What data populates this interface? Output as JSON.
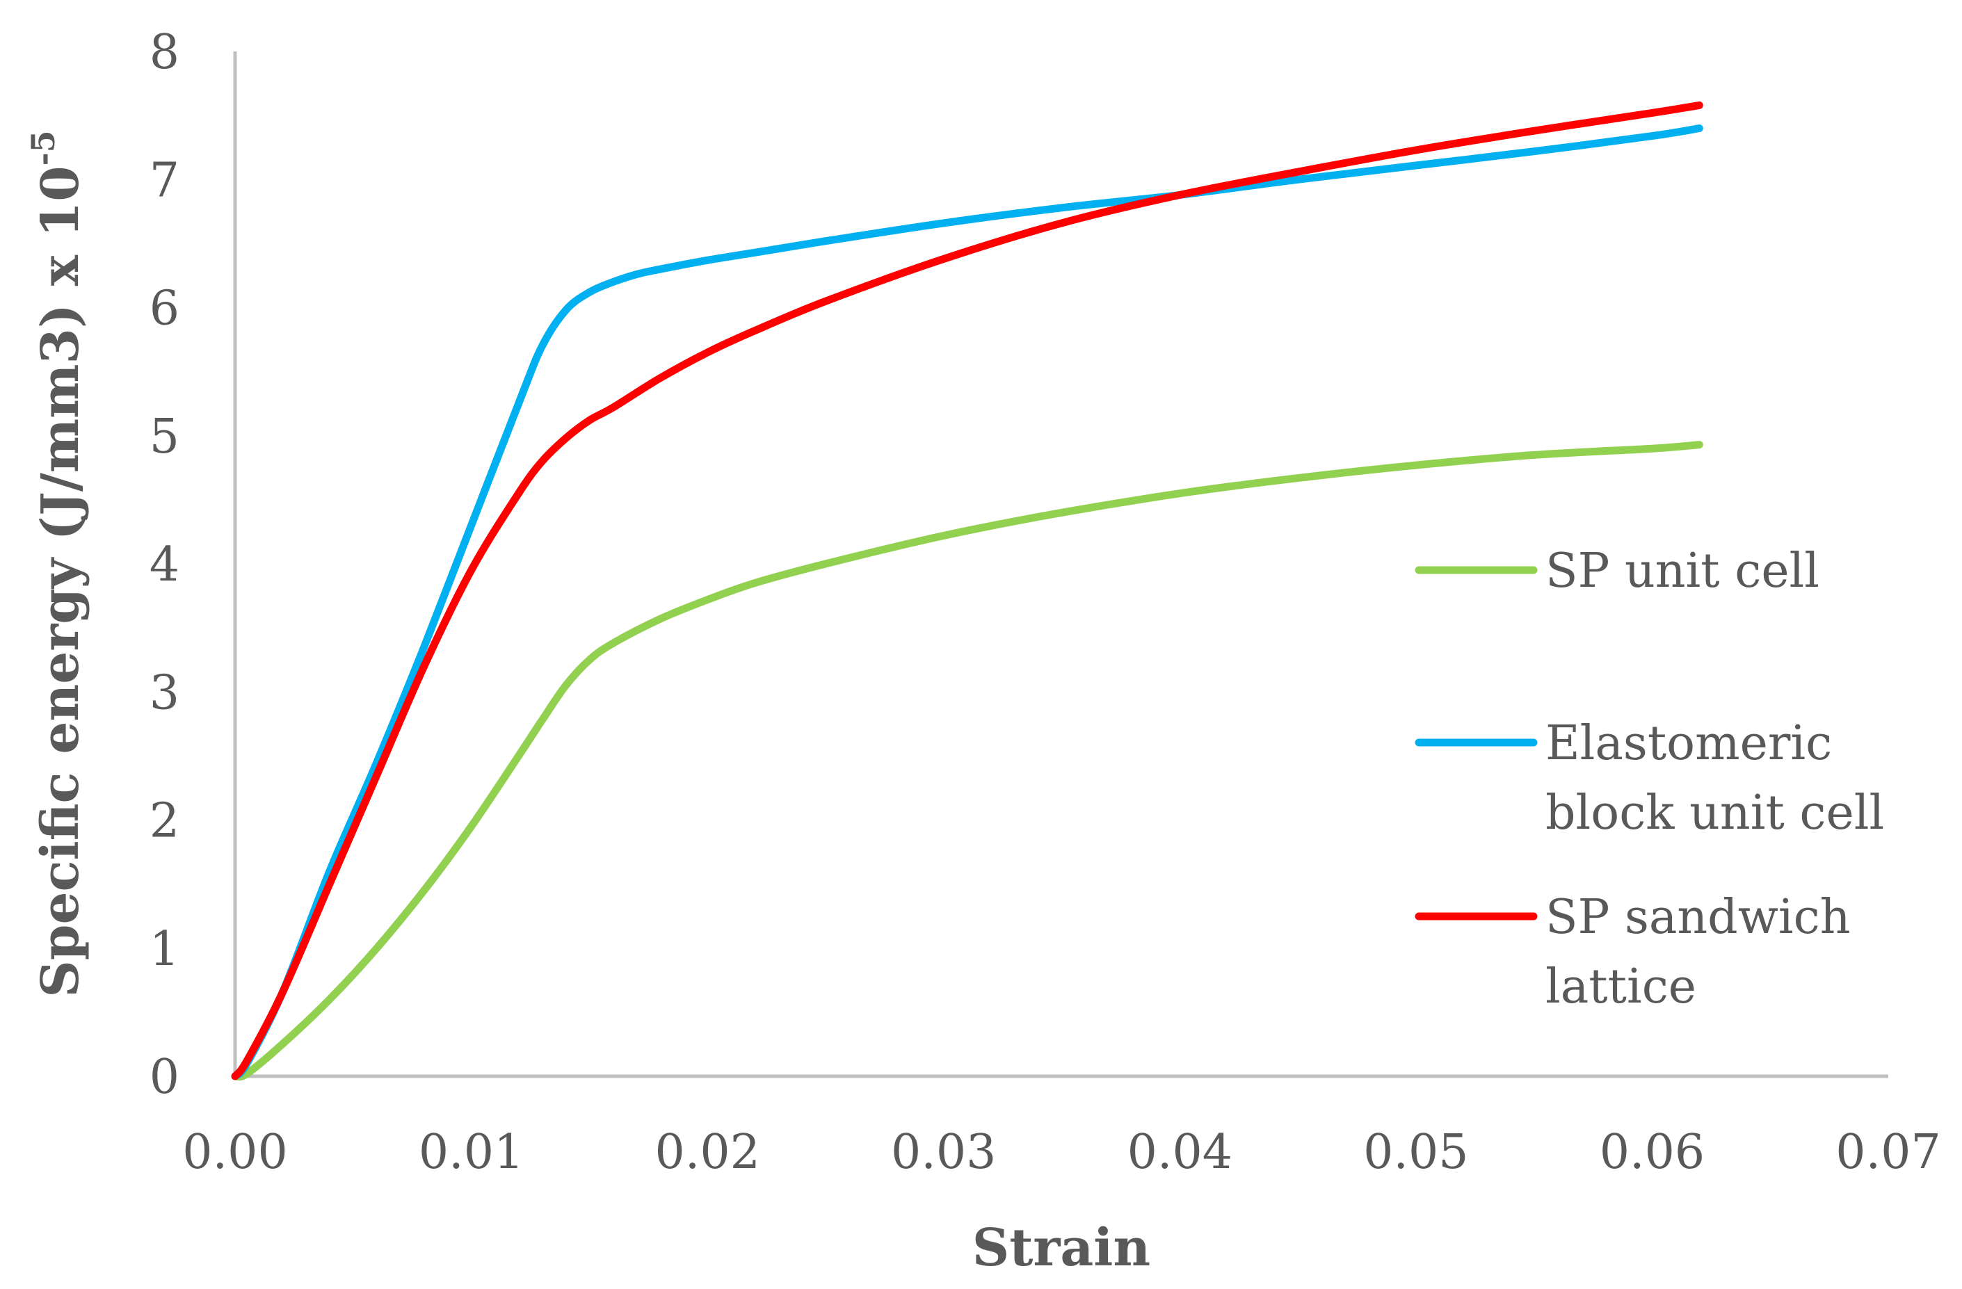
{
  "chart_data": {
    "type": "line",
    "title": "",
    "xlabel": "Strain",
    "ylabel_main": "Specific energy (J/mm3) x 10",
    "ylabel_sup": "-5",
    "xlim": [
      0,
      0.07
    ],
    "ylim": [
      0,
      8
    ],
    "xticks": [
      "0.00",
      "0.01",
      "0.02",
      "0.03",
      "0.04",
      "0.05",
      "0.06",
      "0.07"
    ],
    "yticks": [
      "0",
      "1",
      "2",
      "3",
      "4",
      "5",
      "6",
      "7",
      "8"
    ],
    "grid": false,
    "legend_position": "right",
    "series": [
      {
        "name": "SP unit cell",
        "legend_lines": [
          "SP unit cell"
        ],
        "color": "#92D050",
        "x": [
          0,
          0.0005,
          0.002,
          0.004,
          0.006,
          0.008,
          0.01,
          0.012,
          0.013,
          0.014,
          0.015,
          0.016,
          0.018,
          0.02,
          0.022,
          0.025,
          0.03,
          0.035,
          0.04,
          0.045,
          0.05,
          0.055,
          0.06,
          0.062
        ],
        "y": [
          0,
          0.02,
          0.25,
          0.6,
          1.0,
          1.45,
          1.95,
          2.5,
          2.78,
          3.05,
          3.25,
          3.38,
          3.57,
          3.72,
          3.85,
          4.0,
          4.22,
          4.4,
          4.55,
          4.67,
          4.77,
          4.85,
          4.9,
          4.93
        ]
      },
      {
        "name": "Elastomeric block unit cell",
        "legend_lines": [
          "Elastomeric",
          "block unit cell"
        ],
        "color": "#00B0F0",
        "x": [
          0,
          0.0005,
          0.002,
          0.004,
          0.006,
          0.008,
          0.01,
          0.012,
          0.013,
          0.014,
          0.015,
          0.016,
          0.017,
          0.018,
          0.02,
          0.022,
          0.025,
          0.03,
          0.035,
          0.04,
          0.045,
          0.05,
          0.055,
          0.06,
          0.062
        ],
        "y": [
          0,
          0.1,
          0.65,
          1.6,
          2.45,
          3.35,
          4.3,
          5.25,
          5.7,
          5.98,
          6.12,
          6.2,
          6.26,
          6.3,
          6.37,
          6.43,
          6.52,
          6.66,
          6.78,
          6.88,
          7.0,
          7.11,
          7.22,
          7.34,
          7.4
        ]
      },
      {
        "name": "SP sandwich lattice",
        "legend_lines": [
          "SP sandwich",
          "lattice"
        ],
        "color": "#FF0000",
        "x": [
          0,
          0.0005,
          0.002,
          0.004,
          0.006,
          0.008,
          0.01,
          0.012,
          0.013,
          0.014,
          0.015,
          0.016,
          0.018,
          0.02,
          0.022,
          0.025,
          0.03,
          0.035,
          0.04,
          0.045,
          0.05,
          0.055,
          0.06,
          0.062
        ],
        "y": [
          0,
          0.12,
          0.65,
          1.5,
          2.35,
          3.2,
          3.95,
          4.55,
          4.8,
          4.98,
          5.12,
          5.22,
          5.45,
          5.65,
          5.82,
          6.05,
          6.38,
          6.66,
          6.88,
          7.06,
          7.23,
          7.38,
          7.52,
          7.58
        ]
      }
    ]
  }
}
